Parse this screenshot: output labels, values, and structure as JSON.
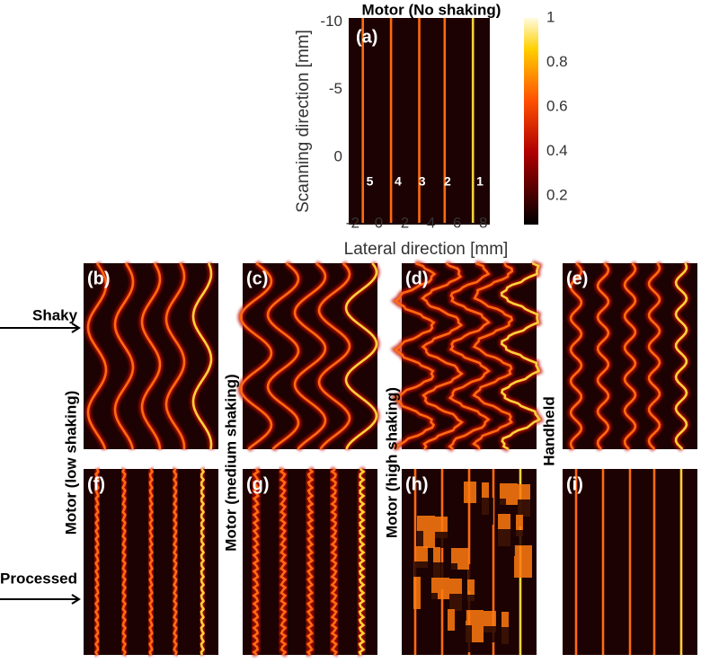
{
  "panel_a": {
    "title": "Motor (No shaking)",
    "label": "(a)",
    "y_axis_label": "Scanning direction [mm]",
    "x_axis_label": "Lateral direction [mm]",
    "yticks": [
      -10,
      -5,
      0
    ],
    "xticks": [
      -2,
      0,
      2,
      4,
      6,
      8
    ],
    "ylim": [
      -10.3,
      5
    ],
    "xlim": [
      -2.3,
      8.5
    ],
    "line_labels": [
      "5",
      "4",
      "3",
      "2",
      "1"
    ]
  },
  "colorbar": {
    "ticks": [
      0.2,
      0.4,
      0.6,
      0.8,
      1
    ],
    "lim": [
      0.07,
      1
    ]
  },
  "panels": [
    {
      "label": "(b)"
    },
    {
      "label": "(c)"
    },
    {
      "label": "(d)"
    },
    {
      "label": "(e)"
    },
    {
      "label": "(f)"
    },
    {
      "label": "(g)"
    },
    {
      "label": "(h)"
    },
    {
      "label": "(i)"
    }
  ],
  "row_labels": [
    "Shaky",
    "Processed"
  ],
  "column_labels": [
    "Motor (low shaking)",
    "Motor (medium shaking)",
    "Motor (high shaking)",
    "Handheld"
  ]
}
